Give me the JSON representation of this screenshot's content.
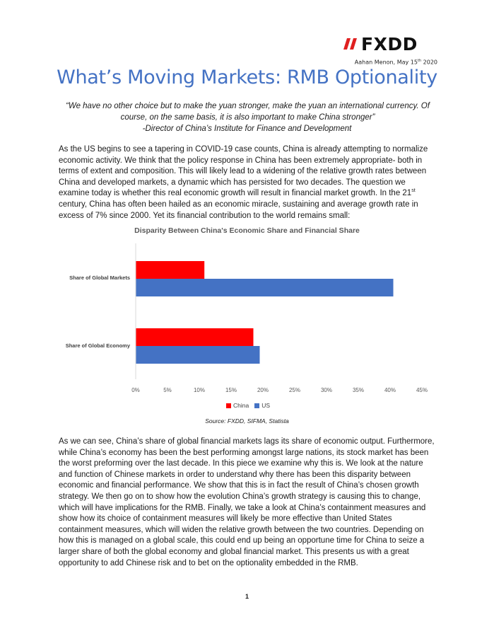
{
  "header": {
    "logo_text": "FXDD",
    "author_date": "Aahan Menon, May 15",
    "date_suffix": "th",
    "year": " 2020"
  },
  "title": "What’s Moving Markets: RMB Optionality",
  "quote": {
    "text": "“We have no other choice but to make the yuan stronger, make the yuan an international currency. Of course, on the same basis, it is also important to make China stronger”",
    "attribution": "-Director of China’s Institute for Finance and Development"
  },
  "paragraph1": {
    "part_a": "As the US begins to see a tapering in COVID-19 case counts, China is already attempting to normalize economic activity. We think that the policy response in China has been extremely appropriate- both in terms of extent and composition. This will likely lead to a widening of the relative growth rates between China and developed markets, a dynamic which has persisted for two decades. The question we examine today is whether this real economic growth will result in financial market growth. In the 21",
    "sup": "st",
    "part_b": " century, China has often been hailed as an economic miracle, sustaining and average growth rate in excess of 7% since 2000. Yet its financial contribution to the world remains small:"
  },
  "chart_data": {
    "type": "bar",
    "orientation": "horizontal",
    "title": "Disparity Between China's Economic Share and Financial Share",
    "categories": [
      "Share of Global Markets",
      "Share of Global Economy"
    ],
    "series": [
      {
        "name": "China",
        "color": "#ff0000",
        "values": [
          10.8,
          18.5
        ]
      },
      {
        "name": "US",
        "color": "#4472c4",
        "values": [
          40.5,
          19.5
        ]
      }
    ],
    "xlim": [
      0,
      45
    ],
    "xticks": [
      "0%",
      "5%",
      "10%",
      "15%",
      "20%",
      "25%",
      "30%",
      "35%",
      "40%",
      "45%"
    ],
    "grid": false,
    "legend_position": "bottom"
  },
  "source": "Source: FXDD, SIFMA, Statista",
  "paragraph2": "As we can see, China’s share of global financial markets lags its share of economic output. Furthermore, while China’s economy has been the best performing amongst large nations, its stock market has been the worst preforming over the last decade. In this piece we examine why this is. We look at the nature and function of Chinese markets in order to understand why there has been this disparity between economic and financial performance. We show that this is in fact the result of China’s chosen growth strategy. We then go on to show how the evolution China’s growth strategy is causing this to change, which will have implications for the RMB. Finally, we take a look at China’s containment measures and show how its choice of containment measures will likely be more effective than United States containment measures, which will widen the relative growth between the two countries. Depending on how this is managed on a global scale, this could end up being an opportune time for China to seize a larger share of both the global economy and global financial market. This presents us with a great opportunity to add Chinese risk and to bet on the optionality embedded in the RMB.",
  "page_number": "1",
  "colors": {
    "title": "#4472c4",
    "logo_accent": "#e02020"
  }
}
